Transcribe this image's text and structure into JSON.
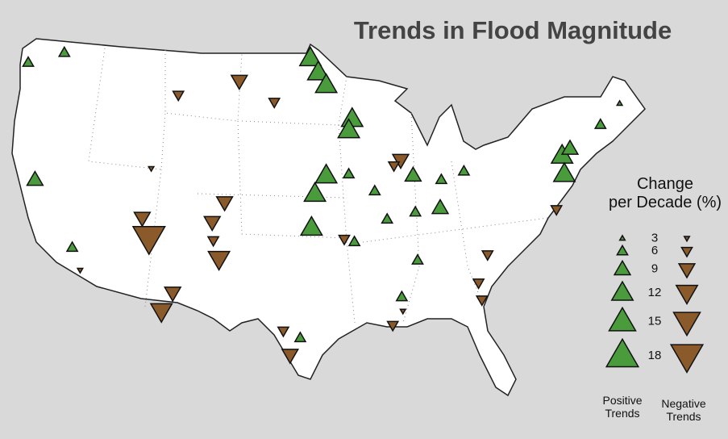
{
  "chart_data": {
    "type": "map",
    "title": "Trends in Flood Magnitude",
    "legend_title": [
      "Change",
      "per Decade (%)"
    ],
    "legend_values": [
      3,
      6,
      9,
      12,
      15,
      18
    ],
    "positive_label": [
      "Positive",
      "Trends"
    ],
    "negative_label": [
      "Negative",
      "Trends"
    ],
    "positive_color": "#4a9b3c",
    "negative_color": "#8b5a2b",
    "sites": [
      {
        "lon": -98.0,
        "lat": 48.3,
        "change": 12
      },
      {
        "lon": -97.3,
        "lat": 47.3,
        "change": 12
      },
      {
        "lon": -96.6,
        "lat": 46.4,
        "change": 12
      },
      {
        "lon": -94.3,
        "lat": 44.0,
        "change": 12
      },
      {
        "lon": -94.6,
        "lat": 43.2,
        "change": 12
      },
      {
        "lon": -96.6,
        "lat": 40.0,
        "change": 12
      },
      {
        "lon": -97.6,
        "lat": 38.7,
        "change": 12
      },
      {
        "lon": -97.9,
        "lat": 36.3,
        "change": 12
      },
      {
        "lon": -88.9,
        "lat": 40.0,
        "change": 9
      },
      {
        "lon": -86.5,
        "lat": 37.7,
        "change": 9
      },
      {
        "lon": -75.7,
        "lat": 41.4,
        "change": 12
      },
      {
        "lon": -75.0,
        "lat": 41.9,
        "change": 9
      },
      {
        "lon": -75.5,
        "lat": 40.1,
        "change": 12
      },
      {
        "lon": -122.4,
        "lat": 39.7,
        "change": 9
      },
      {
        "lon": -119.1,
        "lat": 34.9,
        "change": 6
      },
      {
        "lon": -94.6,
        "lat": 40.1,
        "change": 6
      },
      {
        "lon": -92.3,
        "lat": 38.9,
        "change": 6
      },
      {
        "lon": -86.4,
        "lat": 39.7,
        "change": 6
      },
      {
        "lon": -84.4,
        "lat": 40.3,
        "change": 6
      },
      {
        "lon": -91.2,
        "lat": 36.9,
        "change": 6
      },
      {
        "lon": -88.7,
        "lat": 37.4,
        "change": 6
      },
      {
        "lon": -70.6,
        "lat": 45.1,
        "change": 3
      },
      {
        "lon": -72.3,
        "lat": 43.6,
        "change": 6
      },
      {
        "lon": -98.9,
        "lat": 28.5,
        "change": 6
      },
      {
        "lon": -88.5,
        "lat": 34.0,
        "change": 6
      },
      {
        "lon": -94.1,
        "lat": 35.3,
        "change": 6
      },
      {
        "lon": -89.9,
        "lat": 31.4,
        "change": 6
      },
      {
        "lon": -123.0,
        "lat": 48.0,
        "change": 6
      },
      {
        "lon": -119.8,
        "lat": 48.7,
        "change": 6
      },
      {
        "lon": -112.3,
        "lat": 35.6,
        "change": -18
      },
      {
        "lon": -112.9,
        "lat": 37.0,
        "change": -9
      },
      {
        "lon": -111.2,
        "lat": 30.4,
        "change": -12
      },
      {
        "lon": -110.2,
        "lat": 31.7,
        "change": -9
      },
      {
        "lon": -106.1,
        "lat": 34.1,
        "change": -12
      },
      {
        "lon": -105.6,
        "lat": 38.1,
        "change": -9
      },
      {
        "lon": -106.7,
        "lat": 36.7,
        "change": -9
      },
      {
        "lon": -106.6,
        "lat": 35.4,
        "change": -6
      },
      {
        "lon": -104.3,
        "lat": 46.7,
        "change": -9
      },
      {
        "lon": -100.4,
        "lat": 29.0,
        "change": -6
      },
      {
        "lon": -99.8,
        "lat": 27.3,
        "change": -9
      },
      {
        "lon": -90.0,
        "lat": 41.1,
        "change": -9
      },
      {
        "lon": -109.7,
        "lat": 45.7,
        "change": -6
      },
      {
        "lon": -90.6,
        "lat": 40.7,
        "change": -6
      },
      {
        "lon": -95.0,
        "lat": 35.5,
        "change": -6
      },
      {
        "lon": -82.3,
        "lat": 34.4,
        "change": -6
      },
      {
        "lon": -83.1,
        "lat": 32.4,
        "change": -6
      },
      {
        "lon": -82.8,
        "lat": 31.2,
        "change": -6
      },
      {
        "lon": -90.7,
        "lat": 29.4,
        "change": -6
      },
      {
        "lon": -89.8,
        "lat": 30.4,
        "change": -3
      },
      {
        "lon": -76.2,
        "lat": 37.6,
        "change": -6
      },
      {
        "lon": -118.4,
        "lat": 33.3,
        "change": -3
      },
      {
        "lon": -112.1,
        "lat": 40.5,
        "change": -3
      },
      {
        "lon": -101.2,
        "lat": 45.2,
        "change": -6
      }
    ]
  }
}
